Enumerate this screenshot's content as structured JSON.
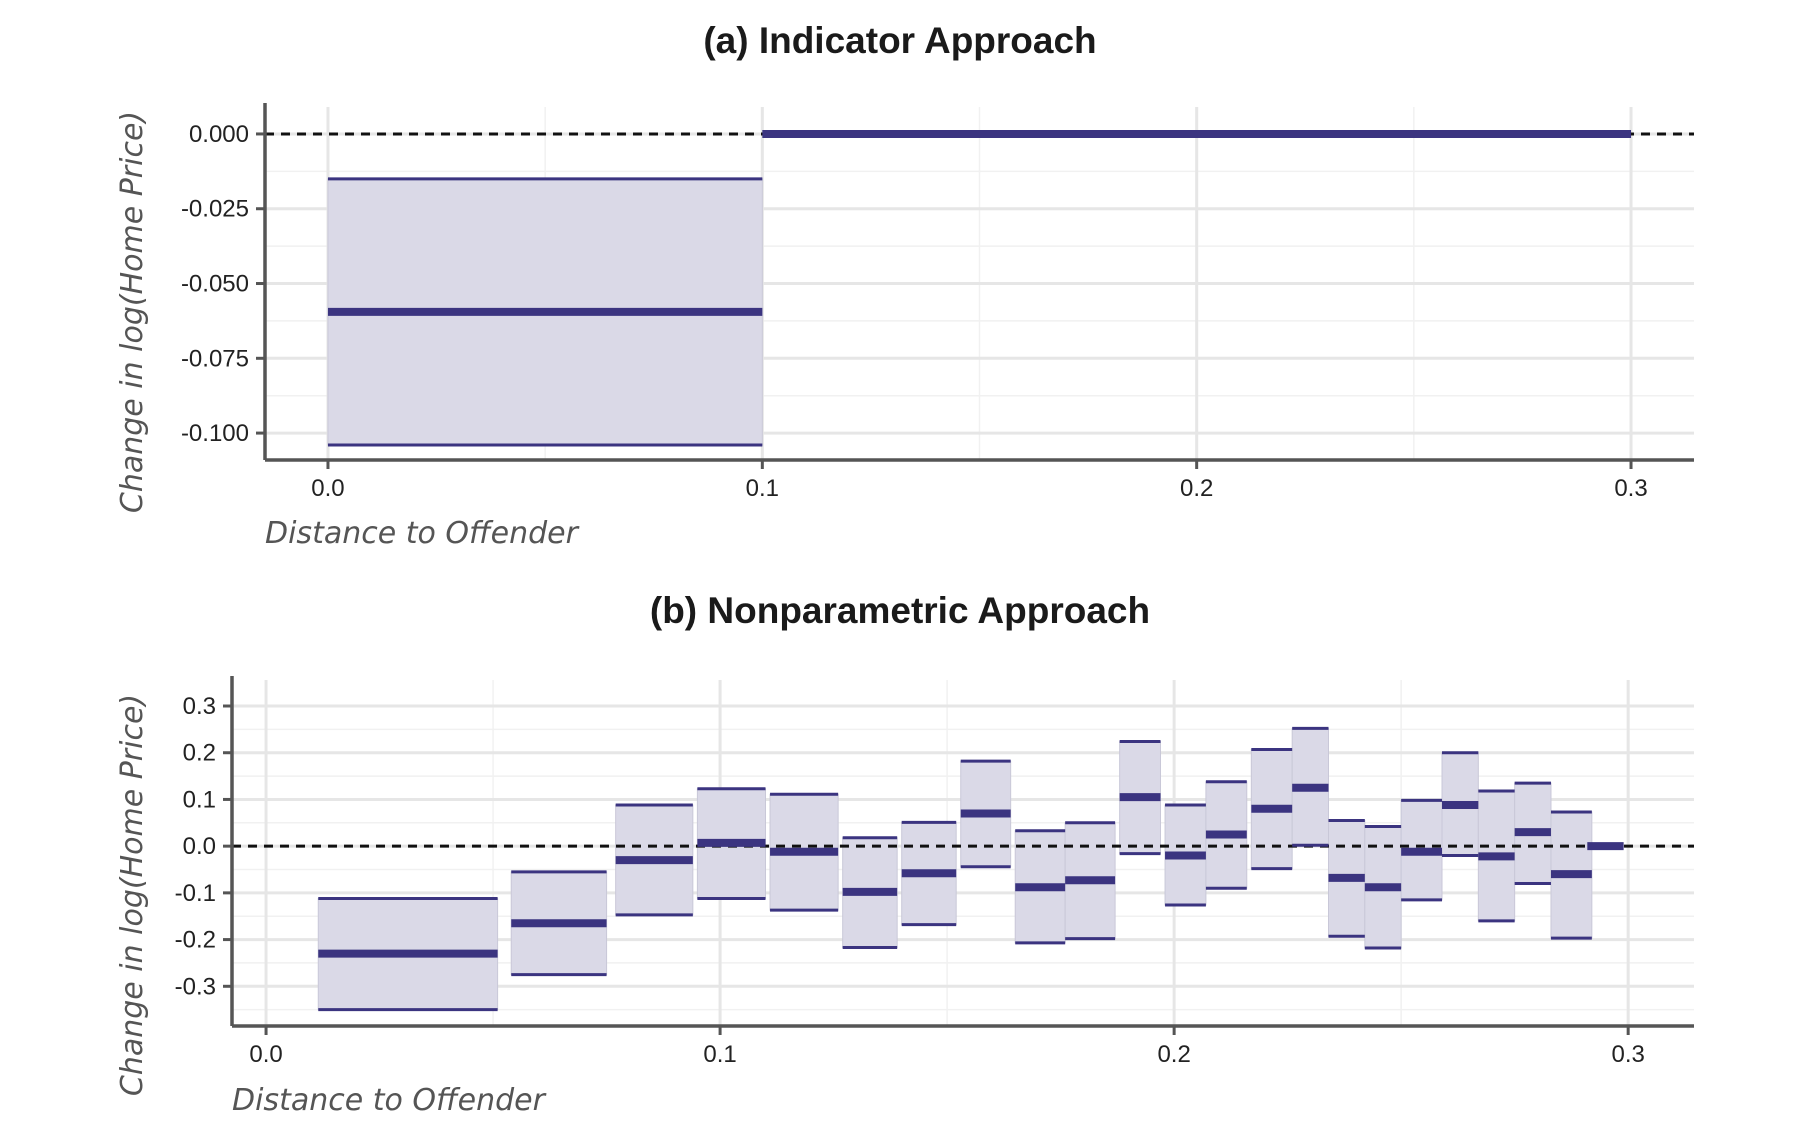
{
  "chart_data": [
    {
      "type": "range",
      "title": "(a) Indicator Approach",
      "xlabel": "Distance to Offender",
      "ylabel": "Change in log(Home Price)",
      "xlim": [
        -0.0145,
        0.3145
      ],
      "ylim": [
        -0.109,
        0.005
      ],
      "xticks": [
        0.0,
        0.1,
        0.2,
        0.3
      ],
      "xtick_labels": [
        "0.0",
        "0.1",
        "0.2",
        "0.3"
      ],
      "yticks": [
        0.0,
        -0.025,
        -0.05,
        -0.075,
        -0.1
      ],
      "ytick_labels": [
        "0.000",
        "-0.025",
        "-0.050",
        "-0.075",
        "-0.100"
      ],
      "reference_line": 0,
      "grid": true,
      "color": "#3b3480",
      "fill_color": "#dad9e7",
      "segments": [
        {
          "x0": 0.0,
          "x1": 0.1,
          "estimate": -0.0595,
          "lower": -0.104,
          "upper": -0.015
        },
        {
          "x0": 0.1,
          "x1": 0.3,
          "estimate": 0.0,
          "lower": 0.0,
          "upper": 0.0
        }
      ]
    },
    {
      "type": "range",
      "title": "(b) Nonparametric Approach",
      "xlabel": "Distance to Offender",
      "ylabel": "Change in log(Home Price)",
      "xlim": [
        -0.0075,
        0.3145
      ],
      "ylim": [
        -0.385,
        0.33
      ],
      "xticks": [
        0.0,
        0.1,
        0.2,
        0.3
      ],
      "xtick_labels": [
        "0.0",
        "0.1",
        "0.2",
        "0.3"
      ],
      "yticks": [
        0.3,
        0.2,
        0.1,
        0.0,
        -0.1,
        -0.2,
        -0.3
      ],
      "ytick_labels": [
        "0.3",
        "0.2",
        "0.1",
        "0.0",
        "-0.1",
        "-0.2",
        "-0.3"
      ],
      "reference_line": 0,
      "grid": true,
      "color": "#3b3480",
      "fill_color": "#dad9e7",
      "segments": [
        {
          "x0": 0.0115,
          "x1": 0.051,
          "estimate": -0.23,
          "lower": -0.35,
          "upper": -0.112
        },
        {
          "x0": 0.054,
          "x1": 0.075,
          "estimate": -0.165,
          "lower": -0.275,
          "upper": -0.055
        },
        {
          "x0": 0.077,
          "x1": 0.094,
          "estimate": -0.03,
          "lower": -0.147,
          "upper": 0.088
        },
        {
          "x0": 0.095,
          "x1": 0.11,
          "estimate": 0.007,
          "lower": -0.112,
          "upper": 0.123
        },
        {
          "x0": 0.111,
          "x1": 0.126,
          "estimate": -0.012,
          "lower": -0.137,
          "upper": 0.111
        },
        {
          "x0": 0.127,
          "x1": 0.139,
          "estimate": -0.098,
          "lower": -0.217,
          "upper": 0.018
        },
        {
          "x0": 0.14,
          "x1": 0.152,
          "estimate": -0.058,
          "lower": -0.168,
          "upper": 0.051
        },
        {
          "x0": 0.153,
          "x1": 0.164,
          "estimate": 0.07,
          "lower": -0.044,
          "upper": 0.182
        },
        {
          "x0": 0.165,
          "x1": 0.176,
          "estimate": -0.088,
          "lower": -0.207,
          "upper": 0.033
        },
        {
          "x0": 0.176,
          "x1": 0.187,
          "estimate": -0.073,
          "lower": -0.198,
          "upper": 0.05
        },
        {
          "x0": 0.188,
          "x1": 0.197,
          "estimate": 0.105,
          "lower": -0.016,
          "upper": 0.224
        },
        {
          "x0": 0.198,
          "x1": 0.207,
          "estimate": -0.02,
          "lower": -0.126,
          "upper": 0.088
        },
        {
          "x0": 0.207,
          "x1": 0.216,
          "estimate": 0.025,
          "lower": -0.09,
          "upper": 0.138
        },
        {
          "x0": 0.217,
          "x1": 0.226,
          "estimate": 0.08,
          "lower": -0.048,
          "upper": 0.207
        },
        {
          "x0": 0.226,
          "x1": 0.234,
          "estimate": 0.125,
          "lower": 0.002,
          "upper": 0.252
        },
        {
          "x0": 0.234,
          "x1": 0.242,
          "estimate": -0.068,
          "lower": -0.193,
          "upper": 0.055
        },
        {
          "x0": 0.242,
          "x1": 0.25,
          "estimate": -0.088,
          "lower": -0.218,
          "upper": 0.042
        },
        {
          "x0": 0.25,
          "x1": 0.259,
          "estimate": -0.012,
          "lower": -0.115,
          "upper": 0.098
        },
        {
          "x0": 0.259,
          "x1": 0.267,
          "estimate": 0.088,
          "lower": -0.02,
          "upper": 0.2
        },
        {
          "x0": 0.267,
          "x1": 0.275,
          "estimate": -0.022,
          "lower": -0.16,
          "upper": 0.118
        },
        {
          "x0": 0.275,
          "x1": 0.283,
          "estimate": 0.03,
          "lower": -0.08,
          "upper": 0.135
        },
        {
          "x0": 0.283,
          "x1": 0.292,
          "estimate": -0.06,
          "lower": -0.197,
          "upper": 0.073
        },
        {
          "x0": 0.291,
          "x1": 0.299,
          "estimate": 0.0,
          "lower": 0.0,
          "upper": 0.0
        }
      ]
    }
  ]
}
